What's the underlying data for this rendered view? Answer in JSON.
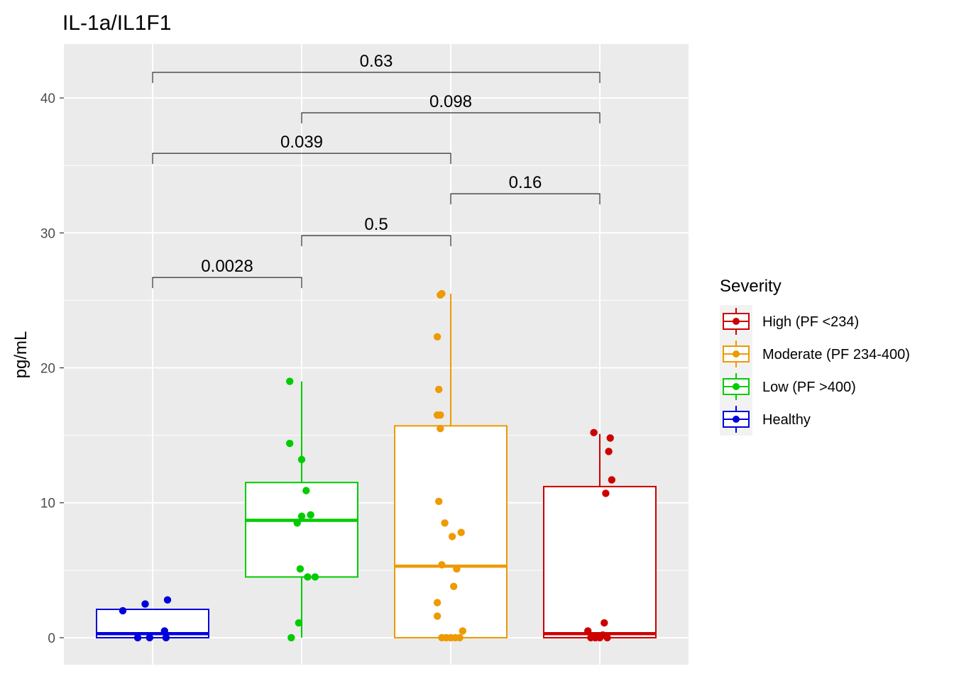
{
  "chart_data": {
    "type": "box",
    "title": "IL-1a/IL1F1",
    "xlabel": "",
    "ylabel": "pg/mL",
    "ylim": [
      -2,
      44
    ],
    "yticks": [
      0,
      10,
      20,
      30,
      40
    ],
    "grid": true,
    "legend": {
      "title": "Severity",
      "position": "right",
      "entries": [
        {
          "label": "High (PF <234)",
          "color": "#CC0000"
        },
        {
          "label": "Moderate (PF 234-400)",
          "color": "#EE9A00"
        },
        {
          "label": "Low (PF >400)",
          "color": "#00CC00"
        },
        {
          "label": "Healthy",
          "color": "#0000DD"
        }
      ]
    },
    "groups": [
      {
        "name": "Healthy",
        "color": "#0000DD",
        "q1": 0.0,
        "median": 0.3,
        "q3": 2.1,
        "whisker_low": 0.0,
        "whisker_high": 2.1,
        "points": [
          [
            -0.2,
            2.0
          ],
          [
            -0.05,
            2.5
          ],
          [
            0.1,
            2.8
          ],
          [
            -0.02,
            0.0
          ],
          [
            0.08,
            0.5
          ],
          [
            -0.1,
            0.0
          ],
          [
            0.09,
            0.0
          ]
        ]
      },
      {
        "name": "Low (PF >400)",
        "color": "#00CC00",
        "q1": 4.5,
        "median": 8.7,
        "q3": 11.5,
        "whisker_low": 0.0,
        "whisker_high": 19.0,
        "points": [
          [
            -0.08,
            19.0
          ],
          [
            -0.08,
            14.4
          ],
          [
            0.0,
            13.2
          ],
          [
            0.03,
            10.9
          ],
          [
            0.0,
            9.0
          ],
          [
            0.06,
            9.1
          ],
          [
            -0.03,
            8.5
          ],
          [
            -0.01,
            5.1
          ],
          [
            0.04,
            4.5
          ],
          [
            0.09,
            4.5
          ],
          [
            -0.02,
            1.1
          ],
          [
            -0.07,
            0.0
          ]
        ]
      },
      {
        "name": "Moderate (PF 234-400)",
        "color": "#EE9A00",
        "q1": 0.0,
        "median": 5.3,
        "q3": 15.7,
        "whisker_low": 0.0,
        "whisker_high": 25.5,
        "points": [
          [
            -0.07,
            25.4
          ],
          [
            -0.06,
            25.5
          ],
          [
            -0.09,
            22.3
          ],
          [
            -0.08,
            18.4
          ],
          [
            -0.09,
            16.5
          ],
          [
            -0.07,
            16.5
          ],
          [
            -0.07,
            15.5
          ],
          [
            -0.08,
            10.1
          ],
          [
            -0.04,
            8.5
          ],
          [
            0.07,
            7.8
          ],
          [
            0.01,
            7.5
          ],
          [
            -0.06,
            5.4
          ],
          [
            0.04,
            5.1
          ],
          [
            0.02,
            3.8
          ],
          [
            -0.09,
            2.6
          ],
          [
            -0.09,
            1.6
          ],
          [
            0.08,
            0.5
          ],
          [
            -0.06,
            0.0
          ],
          [
            -0.03,
            0.0
          ],
          [
            0.0,
            0.0
          ],
          [
            0.03,
            0.0
          ],
          [
            0.06,
            0.0
          ]
        ]
      },
      {
        "name": "High (PF <234)",
        "color": "#CC0000",
        "q1": 0.0,
        "median": 0.3,
        "q3": 11.2,
        "whisker_low": 0.0,
        "whisker_high": 15.1,
        "points": [
          [
            -0.04,
            15.2
          ],
          [
            0.07,
            14.8
          ],
          [
            0.06,
            13.8
          ],
          [
            0.08,
            11.7
          ],
          [
            0.04,
            10.7
          ],
          [
            0.03,
            1.1
          ],
          [
            -0.08,
            0.5
          ],
          [
            -0.06,
            0.0
          ],
          [
            -0.03,
            0.0
          ],
          [
            0.0,
            0.0
          ],
          [
            0.02,
            0.2
          ],
          [
            0.05,
            0.0
          ]
        ]
      }
    ],
    "comparisons": [
      {
        "from": 0,
        "to": 1,
        "y": 26.7,
        "label": "0.0028"
      },
      {
        "from": 1,
        "to": 2,
        "y": 29.8,
        "label": "0.5"
      },
      {
        "from": 2,
        "to": 3,
        "y": 32.9,
        "label": "0.16"
      },
      {
        "from": 0,
        "to": 2,
        "y": 35.9,
        "label": "0.039"
      },
      {
        "from": 1,
        "to": 3,
        "y": 38.9,
        "label": "0.098"
      },
      {
        "from": 0,
        "to": 3,
        "y": 41.9,
        "label": "0.63"
      }
    ]
  }
}
